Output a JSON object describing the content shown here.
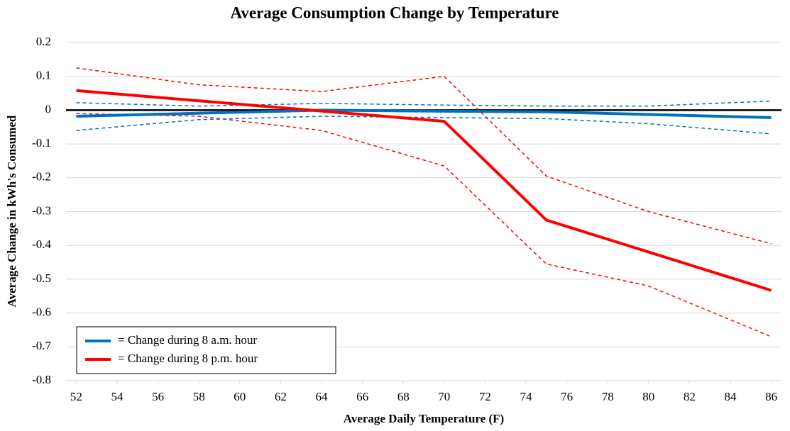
{
  "chart_data": {
    "type": "line",
    "title": "Average Consumption Change by Temperature",
    "x_label": "Average Daily Temperature (F)",
    "y_label": "Average Change in kWh's Consumed",
    "xlim": [
      51.5,
      86.5
    ],
    "xticks": [
      52,
      54,
      56,
      58,
      60,
      62,
      64,
      66,
      68,
      70,
      72,
      74,
      76,
      78,
      80,
      82,
      84,
      86
    ],
    "ylim": [
      -0.8,
      0.2
    ],
    "yticks": [
      0.2,
      0.1,
      0,
      -0.1,
      -0.2,
      -0.3,
      -0.4,
      -0.5,
      -0.6,
      -0.7,
      -0.8
    ],
    "grid": true,
    "legend": "lower left",
    "series": [
      {
        "color": "#ff0000",
        "dashed": true,
        "x": [
          52,
          58,
          64,
          70,
          75,
          80,
          86
        ],
        "values": [
          0.125,
          0.075,
          0.055,
          0.1,
          -0.195,
          -0.3,
          -0.395
        ]
      },
      {
        "color": "#ff0000",
        "dashed": true,
        "x": [
          52,
          58,
          64,
          70,
          75,
          80,
          86
        ],
        "values": [
          -0.01,
          -0.018,
          -0.06,
          -0.165,
          -0.455,
          -0.52,
          -0.67
        ]
      },
      {
        "color": "#0070c0",
        "dashed": true,
        "x": [
          52,
          58,
          64,
          70,
          75,
          80,
          86
        ],
        "values": [
          0.022,
          0.012,
          0.02,
          0.015,
          0.012,
          0.012,
          0.027
        ]
      },
      {
        "color": "#0070c0",
        "dashed": true,
        "x": [
          52,
          58,
          64,
          70,
          75,
          80,
          86
        ],
        "values": [
          -0.06,
          -0.028,
          -0.018,
          -0.022,
          -0.025,
          -0.04,
          -0.07
        ]
      },
      {
        "name": "= Change during 8 a.m. hour",
        "color": "#0070c0",
        "dashed": false,
        "x": [
          52,
          64,
          70,
          75,
          86
        ],
        "values": [
          -0.018,
          0,
          -0.003,
          -0.005,
          -0.022
        ]
      },
      {
        "name": "= Change during 8 p.m. hour",
        "color": "#ff0000",
        "dashed": false,
        "x": [
          52,
          70,
          75,
          86
        ],
        "values": [
          0.058,
          -0.033,
          -0.325,
          -0.533
        ]
      }
    ]
  }
}
